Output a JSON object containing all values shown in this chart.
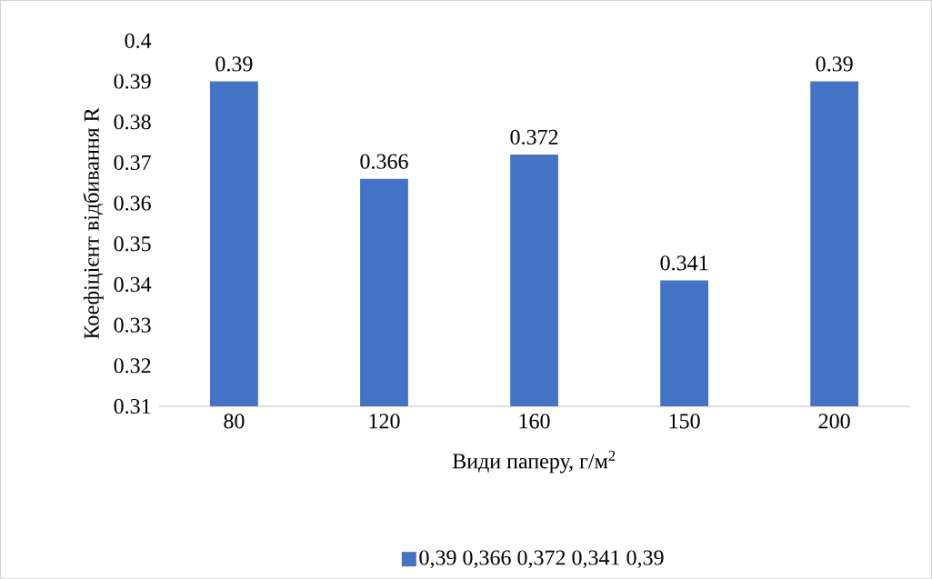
{
  "chart_data": {
    "type": "bar",
    "xlabel": "Види паперу, г/м$^{2}$",
    "ylabel": "Коефіцієнт відбивання R",
    "categories": [
      "80",
      "120",
      "160",
      "150",
      "200"
    ],
    "series": [
      {
        "name": "0,39 0,366 0,372 0,341 0,39",
        "color": "#4472c4",
        "values": [
          0.39,
          0.366,
          0.372,
          0.341,
          0.39
        ]
      }
    ],
    "ylim": [
      0.31,
      0.4
    ],
    "yticks": [
      0.31,
      0.32,
      0.33,
      0.34,
      0.35,
      0.36,
      0.37,
      0.38,
      0.39,
      0.4
    ],
    "data_labels": true,
    "grid": false,
    "legend": "bottom"
  }
}
